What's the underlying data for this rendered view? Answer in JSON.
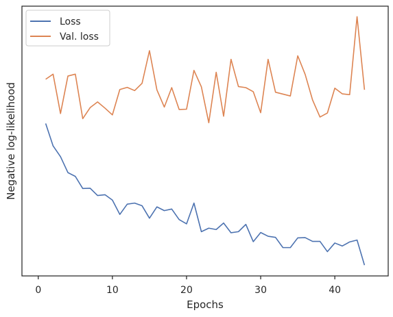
{
  "chart_data": {
    "type": "line",
    "xlabel": "Epochs",
    "ylabel": "Negative log-likelihood",
    "xlim": [
      -2.2,
      47.2
    ],
    "ylim": [
      0,
      1
    ],
    "x_ticks": [
      0,
      10,
      20,
      30,
      40
    ],
    "y_ticks_shown": false,
    "grid": false,
    "legend_position": "top-left",
    "x": [
      1,
      2,
      3,
      4,
      5,
      6,
      7,
      8,
      9,
      10,
      11,
      12,
      13,
      14,
      15,
      16,
      17,
      18,
      19,
      20,
      21,
      22,
      23,
      24,
      25,
      26,
      27,
      28,
      29,
      30,
      31,
      32,
      33,
      34,
      35,
      36,
      37,
      38,
      39,
      40,
      41,
      42,
      43,
      44
    ],
    "series": [
      {
        "name": "Loss",
        "color": "#4c72b0",
        "values": [
          0.565,
          0.482,
          0.442,
          0.383,
          0.369,
          0.324,
          0.325,
          0.298,
          0.301,
          0.281,
          0.228,
          0.266,
          0.27,
          0.26,
          0.214,
          0.256,
          0.242,
          0.248,
          0.209,
          0.193,
          0.27,
          0.164,
          0.177,
          0.172,
          0.196,
          0.16,
          0.164,
          0.191,
          0.127,
          0.161,
          0.147,
          0.143,
          0.105,
          0.105,
          0.141,
          0.142,
          0.128,
          0.128,
          0.09,
          0.122,
          0.111,
          0.126,
          0.133,
          0.04
        ]
      },
      {
        "name": "Val. loss",
        "color": "#dd8452",
        "values": [
          0.729,
          0.748,
          0.602,
          0.741,
          0.748,
          0.583,
          0.624,
          0.645,
          0.622,
          0.597,
          0.691,
          0.699,
          0.687,
          0.714,
          0.835,
          0.69,
          0.626,
          0.698,
          0.617,
          0.618,
          0.762,
          0.701,
          0.568,
          0.755,
          0.592,
          0.803,
          0.702,
          0.698,
          0.683,
          0.605,
          0.803,
          0.681,
          0.674,
          0.667,
          0.816,
          0.747,
          0.652,
          0.589,
          0.604,
          0.696,
          0.675,
          0.672,
          0.961,
          0.69
        ]
      }
    ]
  }
}
